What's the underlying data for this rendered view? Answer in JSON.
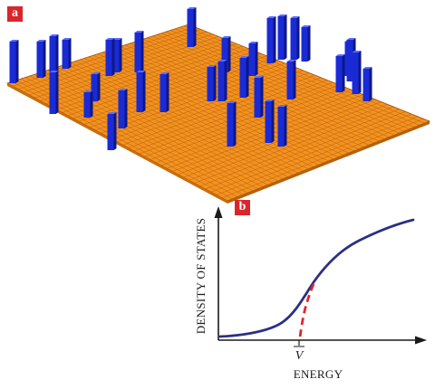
{
  "panel_a": {
    "label": "a",
    "colors": {
      "lattice": "#f4921f",
      "lattice_line": "#9a4d0c",
      "pillar_front": "#1a2bd6",
      "pillar_side": "#0d1788",
      "pillar_top": "#5a6dff"
    }
  },
  "panel_b": {
    "label": "b",
    "ylabel": "DENSITY OF STATES",
    "xlabel": "ENERGY",
    "xtick": "V",
    "colors": {
      "curve": "#2a2f86",
      "dashed": "#e0262b",
      "axis": "#1a1a1a"
    }
  }
}
